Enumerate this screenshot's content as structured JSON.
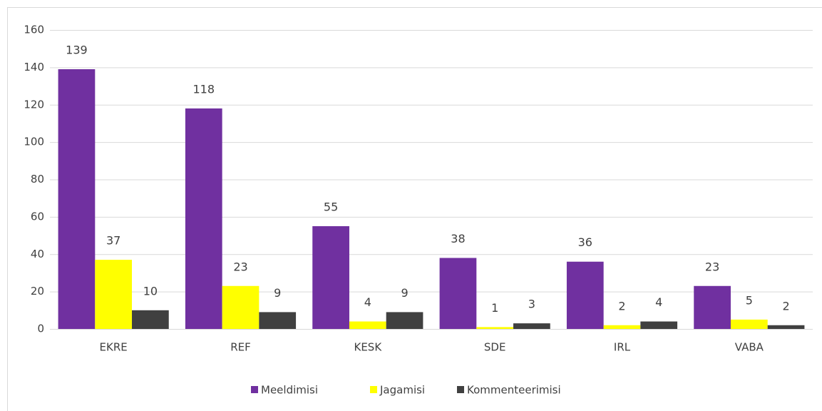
{
  "chart_data": {
    "type": "bar",
    "categories": [
      "EKRE",
      "REF",
      "KESK",
      "SDE",
      "IRL",
      "VABA"
    ],
    "series": [
      {
        "name": "Meeldimisi",
        "color": "#7030a0",
        "values": [
          139,
          118,
          55,
          38,
          36,
          23
        ]
      },
      {
        "name": "Jagamisi",
        "color": "#ffff00",
        "values": [
          37,
          23,
          4,
          1,
          2,
          5
        ]
      },
      {
        "name": "Kommenteerimisi",
        "color": "#404040",
        "values": [
          10,
          9,
          9,
          3,
          4,
          2
        ]
      }
    ],
    "ylim": [
      0,
      160
    ],
    "yticks": [
      0,
      20,
      40,
      60,
      80,
      100,
      120,
      140,
      160
    ],
    "grid": true,
    "legend": "bottom"
  }
}
